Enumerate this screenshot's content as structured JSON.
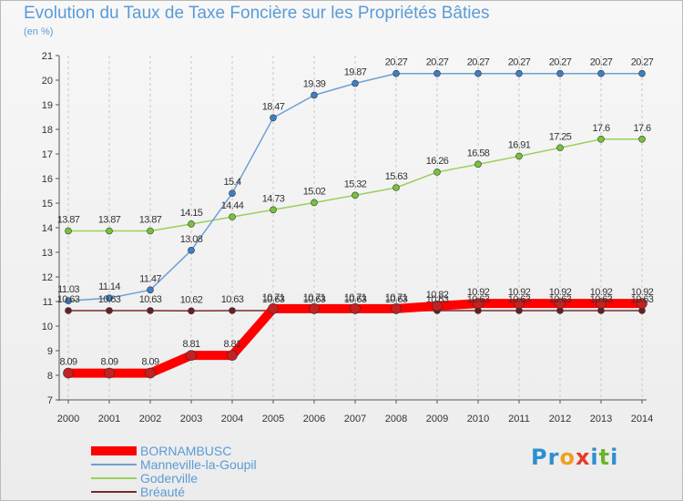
{
  "title": "Evolution du Taux de Taxe Foncière sur les Propriétés Bâties",
  "unit": "(en %)",
  "logo": {
    "text": "Proxiti",
    "letters": [
      {
        "c": "P",
        "color": "#2d8fd0"
      },
      {
        "c": "r",
        "color": "#2d8fd0"
      },
      {
        "c": "o",
        "color": "#f0a020"
      },
      {
        "c": "x",
        "color": "#e83a2a"
      },
      {
        "c": "i",
        "color": "#2d8fd0"
      },
      {
        "c": "t",
        "color": "#68b52e"
      },
      {
        "c": "i",
        "color": "#2d8fd0"
      }
    ]
  },
  "chart_data": {
    "type": "line",
    "x": [
      "2000",
      "2001",
      "2002",
      "2003",
      "2004",
      "2005",
      "2006",
      "2007",
      "2008",
      "2009",
      "2010",
      "2011",
      "2012",
      "2013",
      "2014"
    ],
    "ylim": [
      7,
      21
    ],
    "yticks": [
      7,
      8,
      9,
      10,
      11,
      12,
      13,
      14,
      15,
      16,
      17,
      18,
      19,
      20,
      21
    ],
    "grid": "vertical dashed",
    "legend_position": "bottom-left",
    "series": [
      {
        "name": "BORNAMBUSC",
        "color": "#ff0000",
        "marker_color": "#c62020",
        "values": [
          8.09,
          8.09,
          8.09,
          8.81,
          8.81,
          10.71,
          10.71,
          10.71,
          10.71,
          10.82,
          10.92,
          10.92,
          10.92,
          10.92,
          10.92
        ],
        "labels": [
          "8.09",
          "8.09",
          "8.09",
          "8.81",
          "8.81",
          "10.71",
          "10.71",
          "10.71",
          "10.71",
          "10.82",
          "10.92",
          "10.92",
          "10.92",
          "10.92",
          "10.92"
        ]
      },
      {
        "name": "Manneville-la-Goupil",
        "color": "#6ca0d6",
        "marker_color": "#3d7fc4",
        "values": [
          11.03,
          11.14,
          11.47,
          13.08,
          15.4,
          18.47,
          19.39,
          19.87,
          20.27,
          20.27,
          20.27,
          20.27,
          20.27,
          20.27,
          20.27
        ],
        "labels": [
          "11.03",
          "11.14",
          "11.47",
          "13.08",
          "15.4",
          "18.47",
          "19.39",
          "19.87",
          "20.27",
          "20.27",
          "20.27",
          "20.27",
          "20.27",
          "20.27",
          "20.27"
        ]
      },
      {
        "name": "Goderville",
        "color": "#9ad05a",
        "marker_color": "#78c23a",
        "values": [
          13.87,
          13.87,
          13.87,
          14.15,
          14.44,
          14.73,
          15.02,
          15.32,
          15.63,
          16.26,
          16.58,
          16.91,
          17.25,
          17.6,
          17.6
        ],
        "labels": [
          "13.87",
          "13.87",
          "13.87",
          "14.15",
          "14.44",
          "14.73",
          "15.02",
          "15.32",
          "15.63",
          "16.26",
          "16.58",
          "16.91",
          "17.25",
          "17.6",
          "17.6"
        ]
      },
      {
        "name": "Bréauté",
        "color": "#7a2a2a",
        "marker_color": "#6a1e1e",
        "values": [
          10.63,
          10.63,
          10.63,
          10.62,
          10.63,
          10.63,
          10.63,
          10.63,
          10.63,
          10.63,
          10.63,
          10.63,
          10.63,
          10.63,
          10.63
        ],
        "labels": [
          "10.63",
          "10.63",
          "10.63",
          "10.62",
          "10.63",
          "10.63",
          "10.63",
          "10.63",
          "10.63",
          "10.63",
          "10.63",
          "10.63",
          "10.63",
          "10.63",
          "10.63"
        ]
      }
    ]
  }
}
